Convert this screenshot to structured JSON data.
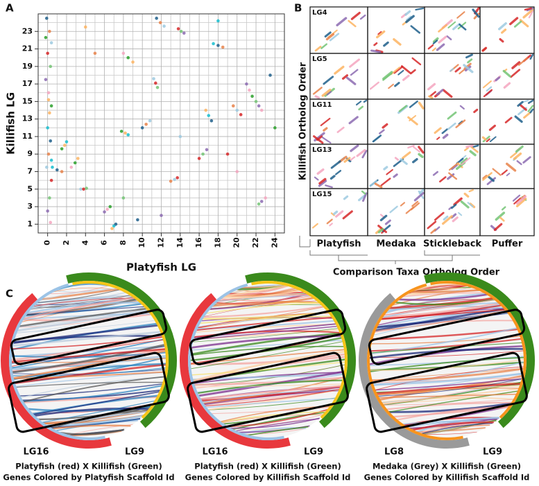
{
  "panel_labels": [
    "A",
    "B",
    "C"
  ],
  "chart_data": {
    "type": "scatter",
    "xlabel": "Platyfish LG",
    "ylabel": "Killifish LG",
    "xlim": [
      -1,
      25
    ],
    "ylim": [
      0,
      25
    ],
    "xticks": [
      0,
      2,
      4,
      6,
      8,
      10,
      12,
      14,
      16,
      18,
      20,
      22,
      24
    ],
    "yticks": [
      1,
      3,
      5,
      7,
      9,
      11,
      13,
      15,
      17,
      19,
      21,
      23
    ],
    "x_minor": [
      1,
      3,
      5,
      7,
      9,
      11,
      13,
      15,
      17,
      19,
      21,
      23
    ],
    "y_minor": [
      2,
      4,
      6,
      8,
      10,
      12,
      14,
      16,
      18,
      20,
      22,
      24
    ],
    "grid": true,
    "palette": [
      "#1f5f8b",
      "#e8834a",
      "#9ecae1",
      "#d62728",
      "#74c476",
      "#8c6bb1",
      "#f4a6c0",
      "#2ca02c",
      "#fdb462",
      "#17becf"
    ],
    "x": [
      -0.1,
      0.2,
      0.4,
      0,
      0.3,
      -0.2,
      0.1,
      0.4,
      0.2,
      0,
      0.3,
      0.1,
      -0.1,
      0.4,
      0.2,
      0,
      0.3,
      -0.2,
      0.1,
      0.4,
      11.5,
      11.9,
      12.3,
      13.8,
      14.1,
      14.4,
      8.0,
      8.5,
      9.0,
      17.5,
      18.0,
      18.5,
      11.2,
      11.4,
      11.6,
      21.0,
      21.3,
      21.6,
      16.7,
      17.0,
      17.3,
      19.6,
      20.0,
      20.4,
      22.0,
      22.3,
      22.6,
      7.8,
      8.2,
      8.5,
      10.0,
      10.4,
      10.8,
      16.0,
      16.4,
      16.8,
      2.5,
      2.9,
      3.2,
      0.5,
      1.0,
      1.5,
      3.5,
      3.8,
      4.1,
      6.0,
      6.3,
      6.6,
      6.8,
      7.0,
      7.2,
      13.0,
      13.4,
      13.7,
      22.3,
      22.6,
      23.0,
      1.5,
      1.8,
      2.0,
      23.5,
      5,
      14,
      19,
      8,
      12,
      20,
      24,
      4,
      18,
      9.5
    ],
    "values": [
      24.5,
      23,
      21.7,
      20.5,
      19,
      17.5,
      16,
      14.5,
      13.7,
      12,
      10.5,
      9,
      7.5,
      6,
      4,
      2.5,
      1.2,
      22.3,
      15.2,
      8.3,
      24.5,
      24.0,
      23.6,
      23.3,
      23.0,
      22.8,
      20.5,
      20.0,
      19.5,
      21.6,
      21.4,
      21.2,
      17.6,
      17.1,
      16.6,
      17.0,
      16.3,
      15.6,
      14.0,
      13.4,
      12.8,
      14.5,
      14.0,
      13.5,
      15.0,
      14.5,
      14.0,
      11.6,
      11.4,
      11.2,
      12.0,
      12.4,
      12.8,
      8.5,
      9.0,
      9.5,
      7.5,
      8.0,
      8.5,
      7.5,
      7.2,
      7.0,
      5.0,
      5.0,
      5.1,
      2.4,
      2.7,
      3.0,
      0.5,
      0.8,
      1.0,
      5.9,
      6.1,
      6.3,
      3.3,
      3.6,
      4.0,
      9.6,
      10.0,
      10.4,
      18.0,
      20.5,
      11,
      9,
      4,
      2,
      7,
      12,
      23.5,
      24.2,
      1.5
    ]
  },
  "panel_b": {
    "row_labels": [
      "LG4",
      "LG5",
      "LG11",
      "LG13",
      "LG15"
    ],
    "column_labels": [
      "Platyfish",
      "Medaka",
      "Stickleback",
      "Puffer"
    ],
    "y_label": "Killifish Ortholog Order",
    "x_label": "Comparison Taxa Ortholog Order"
  },
  "panel_c": [
    {
      "left_label": "LG16",
      "right_label": "LG9",
      "left_color": "#e8383d",
      "right_color": "#3a8a1c",
      "left_inner": "#9cc3e6",
      "right_inner": "#f5c518",
      "caption": [
        "Platyfish (red) X Killifish (Green)",
        "Genes Colored by Platyfish Scaffold Id"
      ]
    },
    {
      "left_label": "LG16",
      "right_label": "LG9",
      "left_color": "#e8383d",
      "right_color": "#3a8a1c",
      "left_inner": "#9cc3e6",
      "right_inner": "#f5c518",
      "caption": [
        "Platyfish (red) X Killifish (Green)",
        "Genes Colored by Killifish Scaffold Id"
      ]
    },
    {
      "left_label": "LG8",
      "right_label": "LG9",
      "left_color": "#9a9a9a",
      "right_color": "#3a8a1c",
      "left_inner": "#f7941d",
      "right_inner": "#f7941d",
      "caption": [
        "Medaka (Grey) X Killifish (Green)",
        "Genes Colored by Killifish Scaffold Id"
      ]
    }
  ]
}
